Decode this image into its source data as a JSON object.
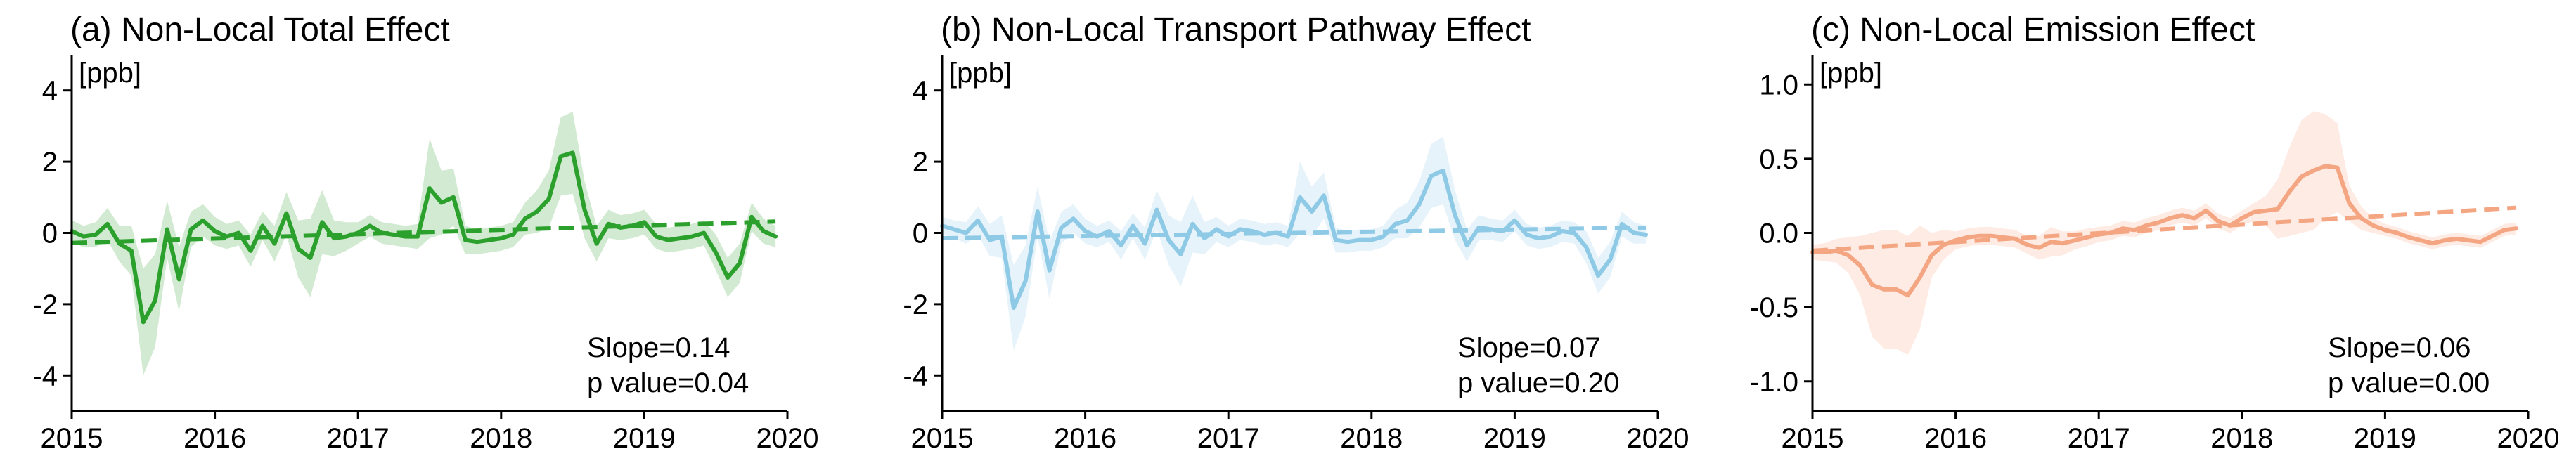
{
  "chart_data": [
    {
      "type": "line",
      "title": "(a) Non-Local Total Effect",
      "unit_label": "[ppb]",
      "xlim": [
        2015,
        2020
      ],
      "ylim": [
        -5,
        5
      ],
      "xticks": [
        "2015",
        "2016",
        "2017",
        "2018",
        "2019",
        "2020"
      ],
      "yticks": [
        "-4",
        "-2",
        "0",
        "2",
        "4"
      ],
      "ytick_values": [
        -4,
        -2,
        0,
        2,
        4
      ],
      "grid": false,
      "color": "#2ca02c",
      "x": [
        2015.0,
        2015.083,
        2015.167,
        2015.25,
        2015.333,
        2015.417,
        2015.5,
        2015.583,
        2015.667,
        2015.75,
        2015.833,
        2015.917,
        2016.0,
        2016.083,
        2016.167,
        2016.25,
        2016.333,
        2016.417,
        2016.5,
        2016.583,
        2016.667,
        2016.75,
        2016.833,
        2016.917,
        2017.0,
        2017.083,
        2017.167,
        2017.25,
        2017.333,
        2017.417,
        2017.5,
        2017.583,
        2017.667,
        2017.75,
        2017.833,
        2017.917,
        2018.0,
        2018.083,
        2018.167,
        2018.25,
        2018.333,
        2018.417,
        2018.5,
        2018.583,
        2018.667,
        2018.75,
        2018.833,
        2018.917,
        2019.0,
        2019.083,
        2019.167,
        2019.25,
        2019.333,
        2019.417,
        2019.5,
        2019.583,
        2019.667,
        2019.75,
        2019.833,
        2019.917
      ],
      "y": [
        0.05,
        -0.1,
        -0.05,
        0.25,
        -0.3,
        -0.5,
        -2.5,
        -1.9,
        0.1,
        -1.3,
        0.1,
        0.35,
        0.05,
        -0.1,
        0.0,
        -0.5,
        0.2,
        -0.3,
        0.55,
        -0.45,
        -0.7,
        0.3,
        -0.15,
        -0.1,
        0.0,
        0.2,
        0.0,
        -0.05,
        -0.1,
        -0.1,
        1.25,
        0.85,
        1.0,
        -0.2,
        -0.25,
        -0.2,
        -0.15,
        -0.05,
        0.4,
        0.6,
        0.95,
        2.15,
        2.25,
        0.65,
        -0.3,
        0.25,
        0.15,
        0.2,
        0.3,
        -0.1,
        -0.2,
        -0.15,
        -0.1,
        0.0,
        -0.55,
        -1.25,
        -0.85,
        0.45,
        0.05,
        -0.1
      ],
      "band_half_width": [
        0.3,
        0.3,
        0.35,
        0.45,
        0.5,
        0.7,
        1.5,
        1.3,
        0.8,
        0.9,
        0.5,
        0.45,
        0.4,
        0.35,
        0.35,
        0.45,
        0.4,
        0.5,
        0.6,
        0.8,
        1.1,
        0.9,
        0.5,
        0.4,
        0.3,
        0.3,
        0.3,
        0.3,
        0.3,
        0.35,
        1.4,
        0.9,
        0.8,
        0.4,
        0.35,
        0.35,
        0.35,
        0.35,
        0.45,
        0.6,
        0.8,
        1.1,
        1.15,
        0.8,
        0.5,
        0.4,
        0.35,
        0.35,
        0.35,
        0.35,
        0.35,
        0.35,
        0.35,
        0.35,
        0.5,
        0.55,
        0.55,
        0.4,
        0.35,
        0.3
      ],
      "trend": {
        "start": -0.28,
        "end": 0.32
      },
      "slope_text": "Slope=0.14",
      "p_text": "p value=0.04"
    },
    {
      "type": "line",
      "title": "(b) Non-Local Transport Pathway Effect",
      "unit_label": "[ppb]",
      "xlim": [
        2015,
        2020
      ],
      "ylim": [
        -5,
        5
      ],
      "xticks": [
        "2015",
        "2016",
        "2017",
        "2018",
        "2019",
        "2020"
      ],
      "yticks": [
        "-4",
        "-2",
        "0",
        "2",
        "4"
      ],
      "ytick_values": [
        -4,
        -2,
        0,
        2,
        4
      ],
      "grid": false,
      "color": "#8ecae6",
      "x": [
        2015.0,
        2015.083,
        2015.167,
        2015.25,
        2015.333,
        2015.417,
        2015.5,
        2015.583,
        2015.667,
        2015.75,
        2015.833,
        2015.917,
        2016.0,
        2016.083,
        2016.167,
        2016.25,
        2016.333,
        2016.417,
        2016.5,
        2016.583,
        2016.667,
        2016.75,
        2016.833,
        2016.917,
        2017.0,
        2017.083,
        2017.167,
        2017.25,
        2017.333,
        2017.417,
        2017.5,
        2017.583,
        2017.667,
        2017.75,
        2017.833,
        2017.917,
        2018.0,
        2018.083,
        2018.167,
        2018.25,
        2018.333,
        2018.417,
        2018.5,
        2018.583,
        2018.667,
        2018.75,
        2018.833,
        2018.917,
        2019.0,
        2019.083,
        2019.167,
        2019.25,
        2019.333,
        2019.417,
        2019.5,
        2019.583,
        2019.667,
        2019.75,
        2019.833,
        2019.917
      ],
      "y": [
        0.2,
        0.1,
        0.0,
        0.35,
        -0.2,
        -0.1,
        -2.1,
        -1.35,
        0.6,
        -1.05,
        0.15,
        0.4,
        0.05,
        -0.1,
        0.05,
        -0.35,
        0.2,
        -0.3,
        0.65,
        -0.2,
        -0.6,
        0.25,
        -0.15,
        0.1,
        -0.1,
        0.1,
        0.05,
        -0.05,
        0.0,
        -0.1,
        1.0,
        0.6,
        1.05,
        -0.2,
        -0.25,
        -0.2,
        -0.2,
        -0.1,
        0.25,
        0.35,
        0.8,
        1.6,
        1.75,
        0.5,
        -0.35,
        0.15,
        0.1,
        0.05,
        0.35,
        -0.05,
        -0.15,
        -0.1,
        0.05,
        0.0,
        -0.4,
        -1.2,
        -0.75,
        0.25,
        0.0,
        -0.05
      ],
      "band_half_width": [
        0.25,
        0.25,
        0.3,
        0.4,
        0.45,
        0.6,
        1.2,
        1.0,
        0.7,
        0.8,
        0.45,
        0.4,
        0.35,
        0.3,
        0.3,
        0.4,
        0.35,
        0.45,
        0.55,
        0.7,
        0.9,
        0.8,
        0.45,
        0.35,
        0.3,
        0.3,
        0.3,
        0.3,
        0.3,
        0.3,
        1.0,
        0.7,
        0.65,
        0.35,
        0.3,
        0.3,
        0.3,
        0.3,
        0.4,
        0.5,
        0.65,
        0.9,
        0.95,
        0.7,
        0.45,
        0.35,
        0.3,
        0.3,
        0.3,
        0.3,
        0.3,
        0.3,
        0.3,
        0.3,
        0.45,
        0.5,
        0.5,
        0.35,
        0.3,
        0.25
      ],
      "trend": {
        "start": -0.15,
        "end": 0.15
      },
      "slope_text": "Slope=0.07",
      "p_text": "p value=0.20"
    },
    {
      "type": "line",
      "title": "(c) Non-Local Emission Effect",
      "unit_label": "[ppb]",
      "xlim": [
        2015,
        2020
      ],
      "ylim": [
        -1.2,
        1.2
      ],
      "xticks": [
        "2015",
        "2016",
        "2017",
        "2018",
        "2019",
        "2020"
      ],
      "yticks": [
        "-1.0",
        "-0.5",
        "0.0",
        "0.5",
        "1.0"
      ],
      "ytick_values": [
        -1.0,
        -0.5,
        0.0,
        0.5,
        1.0
      ],
      "grid": false,
      "color": "#f4a582",
      "x": [
        2015.0,
        2015.083,
        2015.167,
        2015.25,
        2015.333,
        2015.417,
        2015.5,
        2015.583,
        2015.667,
        2015.75,
        2015.833,
        2015.917,
        2016.0,
        2016.083,
        2016.167,
        2016.25,
        2016.333,
        2016.417,
        2016.5,
        2016.583,
        2016.667,
        2016.75,
        2016.833,
        2016.917,
        2017.0,
        2017.083,
        2017.167,
        2017.25,
        2017.333,
        2017.417,
        2017.5,
        2017.583,
        2017.667,
        2017.75,
        2017.833,
        2017.917,
        2018.0,
        2018.083,
        2018.167,
        2018.25,
        2018.333,
        2018.417,
        2018.5,
        2018.583,
        2018.667,
        2018.75,
        2018.833,
        2018.917,
        2019.0,
        2019.083,
        2019.167,
        2019.25,
        2019.333,
        2019.417,
        2019.5,
        2019.583,
        2019.667,
        2019.75,
        2019.833,
        2019.917
      ],
      "y": [
        -0.13,
        -0.13,
        -0.12,
        -0.15,
        -0.22,
        -0.35,
        -0.38,
        -0.38,
        -0.42,
        -0.3,
        -0.15,
        -0.08,
        -0.05,
        -0.03,
        -0.02,
        -0.02,
        -0.03,
        -0.04,
        -0.08,
        -0.1,
        -0.06,
        -0.07,
        -0.05,
        -0.03,
        -0.01,
        0.0,
        0.03,
        0.02,
        0.05,
        0.07,
        0.1,
        0.12,
        0.1,
        0.15,
        0.08,
        0.05,
        0.1,
        0.14,
        0.15,
        0.16,
        0.28,
        0.38,
        0.42,
        0.45,
        0.44,
        0.2,
        0.1,
        0.05,
        0.02,
        0.0,
        -0.03,
        -0.05,
        -0.07,
        -0.05,
        -0.04,
        -0.05,
        -0.06,
        -0.02,
        0.02,
        0.03
      ],
      "band_half_width": [
        0.05,
        0.06,
        0.08,
        0.12,
        0.2,
        0.35,
        0.4,
        0.4,
        0.4,
        0.35,
        0.15,
        0.1,
        0.06,
        0.06,
        0.06,
        0.06,
        0.06,
        0.06,
        0.06,
        0.08,
        0.1,
        0.08,
        0.06,
        0.06,
        0.05,
        0.05,
        0.05,
        0.05,
        0.05,
        0.05,
        0.05,
        0.05,
        0.05,
        0.05,
        0.05,
        0.05,
        0.05,
        0.06,
        0.1,
        0.2,
        0.3,
        0.38,
        0.4,
        0.35,
        0.3,
        0.12,
        0.08,
        0.05,
        0.04,
        0.04,
        0.04,
        0.04,
        0.04,
        0.04,
        0.04,
        0.04,
        0.04,
        0.04,
        0.04,
        0.04
      ],
      "trend": {
        "start": -0.12,
        "end": 0.17
      },
      "slope_text": "Slope=0.06",
      "p_text": "p value=0.00"
    }
  ]
}
